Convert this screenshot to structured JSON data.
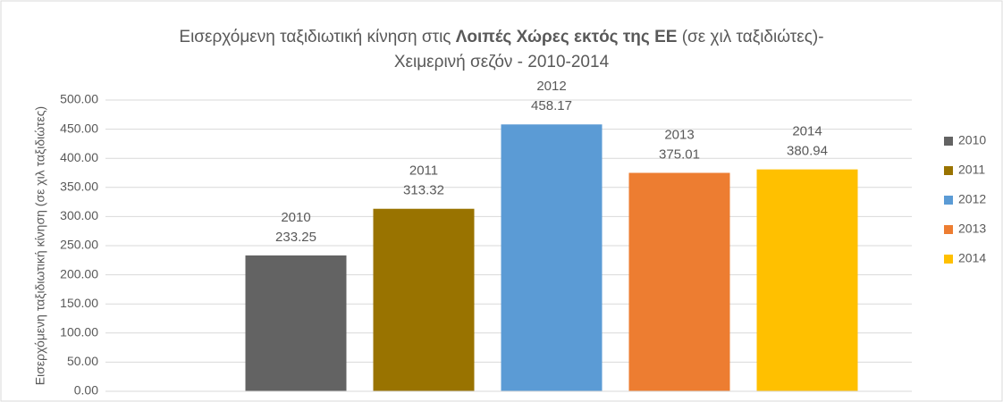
{
  "chart_data": {
    "type": "bar",
    "title": [
      "Εισερχόμενη ταξιδιωτική κίνηση στις ",
      "Λοιπές Χώρες εκτός της ΕΕ",
      " (σε χιλ ταξιδιώτες)- Χειμερινή σεζόν - 2010-2014"
    ],
    "y_label": "Εισερχόμενη ταξιδιωτική κίνηση (σε χιλ ταξιδιώτες)",
    "series": [
      {
        "name": "2010",
        "color": "#636363",
        "values": [
          233.25
        ]
      },
      {
        "name": "2011",
        "color": "#997300",
        "values": [
          313.32
        ]
      },
      {
        "name": "2012",
        "color": "#5b9bd5",
        "values": [
          458.17
        ]
      },
      {
        "name": "2013",
        "color": "#ed7d31",
        "values": [
          375.01
        ]
      },
      {
        "name": "2014",
        "color": "#ffc000",
        "values": [
          380.94
        ]
      }
    ],
    "ylim": [
      0,
      500
    ],
    "yticks": [
      {
        "value": 0,
        "label": "0.00"
      },
      {
        "value": 50,
        "label": "50.00"
      },
      {
        "value": 100,
        "label": "100.00"
      },
      {
        "value": 150,
        "label": "150.00"
      },
      {
        "value": 200,
        "label": "200.00"
      },
      {
        "value": 250,
        "label": "250.00"
      },
      {
        "value": 300,
        "label": "300.00"
      },
      {
        "value": 350,
        "label": "350.00"
      },
      {
        "value": 400,
        "label": "400.00"
      },
      {
        "value": 450,
        "label": "450.00"
      },
      {
        "value": 500,
        "label": "500.00"
      }
    ],
    "grid": true,
    "legend": "right"
  }
}
